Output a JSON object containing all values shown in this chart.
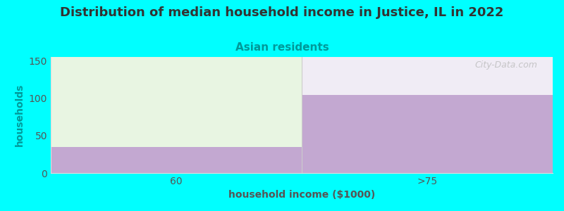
{
  "title": "Distribution of median household income in Justice, IL in 2022",
  "subtitle": "Asian residents",
  "xlabel": "household income ($1000)",
  "ylabel": "households",
  "background_color": "#00FFFF",
  "plot_bg_color": "#FFFFFF",
  "categories": [
    "60",
    ">75"
  ],
  "values": [
    35,
    104
  ],
  "bar_color": "#C3A8D1",
  "light_green_color": "#E8F5E2",
  "light_right_color": "#F0ECF5",
  "ylim": [
    0,
    155
  ],
  "yticks": [
    0,
    50,
    100,
    150
  ],
  "title_fontsize": 13,
  "subtitle_fontsize": 11,
  "title_color": "#333333",
  "subtitle_color": "#009999",
  "xlabel_color": "#555555",
  "ylabel_color": "#009999",
  "axis_label_fontsize": 10,
  "tick_fontsize": 10,
  "watermark": "City-Data.com"
}
